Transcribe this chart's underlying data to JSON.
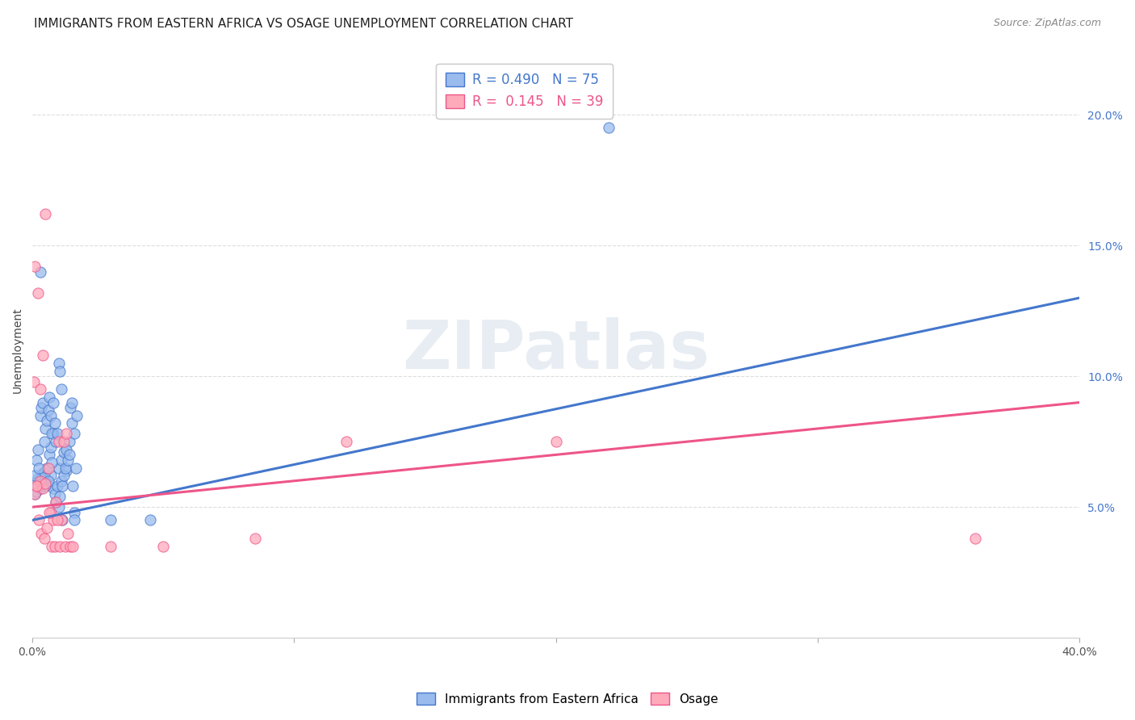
{
  "title": "IMMIGRANTS FROM EASTERN AFRICA VS OSAGE UNEMPLOYMENT CORRELATION CHART",
  "source": "Source: ZipAtlas.com",
  "ylabel": "Unemployment",
  "watermark": "ZIPatlas",
  "legend_blue_r": "0.490",
  "legend_blue_n": "75",
  "legend_pink_r": "0.145",
  "legend_pink_n": "39",
  "legend_label_blue": "Immigrants from Eastern Africa",
  "legend_label_pink": "Osage",
  "blue_color": "#99BBEE",
  "pink_color": "#FFAABB",
  "blue_line_color": "#4477CC",
  "pink_line_color": "#EE5588",
  "blue_scatter": [
    [
      0.2,
      6.1
    ],
    [
      0.3,
      5.8
    ],
    [
      0.4,
      6.3
    ],
    [
      0.5,
      6.0
    ],
    [
      0.6,
      5.9
    ],
    [
      0.7,
      6.2
    ],
    [
      0.8,
      5.7
    ],
    [
      1.0,
      6.5
    ],
    [
      1.1,
      6.8
    ],
    [
      1.2,
      7.1
    ],
    [
      1.3,
      6.4
    ],
    [
      1.4,
      7.5
    ],
    [
      1.5,
      8.2
    ],
    [
      1.6,
      7.8
    ],
    [
      1.7,
      8.5
    ],
    [
      0.1,
      5.5
    ],
    [
      0.15,
      5.6
    ],
    [
      0.2,
      5.8
    ],
    [
      0.25,
      6.0
    ],
    [
      0.3,
      5.7
    ],
    [
      0.35,
      6.1
    ],
    [
      0.4,
      5.9
    ],
    [
      0.45,
      6.3
    ],
    [
      0.5,
      5.8
    ],
    [
      0.55,
      6.5
    ],
    [
      0.6,
      6.0
    ],
    [
      0.65,
      7.0
    ],
    [
      0.7,
      7.3
    ],
    [
      0.75,
      6.7
    ],
    [
      0.8,
      7.8
    ],
    [
      0.85,
      5.5
    ],
    [
      0.9,
      5.2
    ],
    [
      0.95,
      5.8
    ],
    [
      1.0,
      5.0
    ],
    [
      1.05,
      5.4
    ],
    [
      1.1,
      6.0
    ],
    [
      1.15,
      5.8
    ],
    [
      1.2,
      6.2
    ],
    [
      1.25,
      6.5
    ],
    [
      1.3,
      7.2
    ],
    [
      1.35,
      6.8
    ],
    [
      1.4,
      7.0
    ],
    [
      1.45,
      8.8
    ],
    [
      1.5,
      9.0
    ],
    [
      1.55,
      5.8
    ],
    [
      1.6,
      4.8
    ],
    [
      1.65,
      6.5
    ],
    [
      0.05,
      5.9
    ],
    [
      0.1,
      6.2
    ],
    [
      0.15,
      6.8
    ],
    [
      0.2,
      7.2
    ],
    [
      0.25,
      6.5
    ],
    [
      0.3,
      8.5
    ],
    [
      0.35,
      8.8
    ],
    [
      0.4,
      9.0
    ],
    [
      0.45,
      7.5
    ],
    [
      0.5,
      8.0
    ],
    [
      0.55,
      8.3
    ],
    [
      0.6,
      8.7
    ],
    [
      0.65,
      9.2
    ],
    [
      0.7,
      8.5
    ],
    [
      0.75,
      7.8
    ],
    [
      0.8,
      9.0
    ],
    [
      0.85,
      8.2
    ],
    [
      0.9,
      7.5
    ],
    [
      0.95,
      7.8
    ],
    [
      1.0,
      10.5
    ],
    [
      1.05,
      10.2
    ],
    [
      1.1,
      9.5
    ],
    [
      1.15,
      4.5
    ],
    [
      1.6,
      4.5
    ],
    [
      3.0,
      4.5
    ],
    [
      4.5,
      4.5
    ],
    [
      22.0,
      19.5
    ],
    [
      0.3,
      14.0
    ]
  ],
  "pink_scatter": [
    [
      0.1,
      5.5
    ],
    [
      0.2,
      5.8
    ],
    [
      0.3,
      6.0
    ],
    [
      0.4,
      5.7
    ],
    [
      0.5,
      5.9
    ],
    [
      0.6,
      6.5
    ],
    [
      0.7,
      4.8
    ],
    [
      0.8,
      4.5
    ],
    [
      0.9,
      5.2
    ],
    [
      1.0,
      7.5
    ],
    [
      1.1,
      4.5
    ],
    [
      1.2,
      7.5
    ],
    [
      1.3,
      7.8
    ],
    [
      0.05,
      9.8
    ],
    [
      0.15,
      5.8
    ],
    [
      0.25,
      4.5
    ],
    [
      0.35,
      4.0
    ],
    [
      0.45,
      3.8
    ],
    [
      0.55,
      4.2
    ],
    [
      0.65,
      4.8
    ],
    [
      0.75,
      3.5
    ],
    [
      0.85,
      3.5
    ],
    [
      0.95,
      4.5
    ],
    [
      1.05,
      3.5
    ],
    [
      1.25,
      3.5
    ],
    [
      1.35,
      4.0
    ],
    [
      1.45,
      3.5
    ],
    [
      1.55,
      3.5
    ],
    [
      0.1,
      14.2
    ],
    [
      0.5,
      16.2
    ],
    [
      8.5,
      3.8
    ],
    [
      12.0,
      7.5
    ],
    [
      0.2,
      13.2
    ],
    [
      0.4,
      10.8
    ],
    [
      3.0,
      3.5
    ],
    [
      5.0,
      3.5
    ],
    [
      0.3,
      9.5
    ],
    [
      36.0,
      3.8
    ],
    [
      20.0,
      7.5
    ]
  ],
  "blue_trendline": [
    0,
    4.5,
    40,
    13.0
  ],
  "pink_trendline": [
    0,
    5.0,
    40,
    9.0
  ],
  "xlim": [
    0,
    40
  ],
  "ylim": [
    0,
    22
  ],
  "yticks": [
    5,
    10,
    15,
    20
  ],
  "ytick_labels": [
    "5.0%",
    "10.0%",
    "15.0%",
    "20.0%"
  ],
  "xticks": [
    0,
    10,
    20,
    30,
    40
  ],
  "xtick_labels": [
    "0.0%",
    "",
    "",
    "",
    "40.0%"
  ],
  "grid_color": "#DDDDDD",
  "title_fontsize": 11,
  "axis_label_fontsize": 10,
  "tick_fontsize": 10
}
